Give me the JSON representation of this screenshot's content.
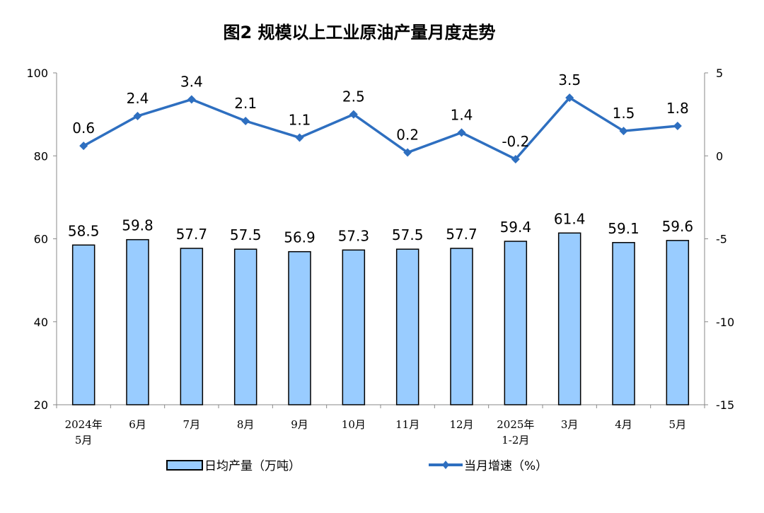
{
  "chart_data": {
    "type": "bar+line",
    "title": "图2  规模以上工业原油产量月度走势",
    "categories": [
      "2024年\n5月",
      "6月",
      "7月",
      "8月",
      "9月",
      "10月",
      "11月",
      "12月",
      "2025年\n1-2月",
      "3月",
      "4月",
      "5月"
    ],
    "series": [
      {
        "name": "日均产量（万吨）",
        "type": "bar",
        "axis": "left",
        "color": "#99CCFF",
        "values": [
          58.5,
          59.8,
          57.7,
          57.5,
          56.9,
          57.3,
          57.5,
          57.7,
          59.4,
          61.4,
          59.1,
          59.6
        ],
        "labels": [
          "58.5",
          "59.8",
          "57.7",
          "57.5",
          "56.9",
          "57.3",
          "57.5",
          "57.7",
          "59.4",
          "61.4",
          "59.1",
          "59.6"
        ]
      },
      {
        "name": "当月增速（%）",
        "type": "line",
        "axis": "right",
        "color": "#2E6FC0",
        "values": [
          0.6,
          2.4,
          3.4,
          2.1,
          1.1,
          2.5,
          0.2,
          1.4,
          -0.2,
          3.5,
          1.5,
          1.8
        ],
        "labels": [
          "0.6",
          "2.4",
          "3.4",
          "2.1",
          "1.1",
          "2.5",
          "0.2",
          "1.4",
          "-0.2",
          "3.5",
          "1.5",
          "1.8"
        ]
      }
    ],
    "y_left": {
      "lim": [
        20,
        100
      ],
      "ticks": [
        "20",
        "40",
        "60",
        "80",
        "100"
      ]
    },
    "y_right": {
      "lim": [
        -15,
        5
      ],
      "ticks": [
        "-15",
        "-10",
        "-5",
        "0",
        "5"
      ]
    },
    "grid": false,
    "legend_position": "bottom"
  }
}
